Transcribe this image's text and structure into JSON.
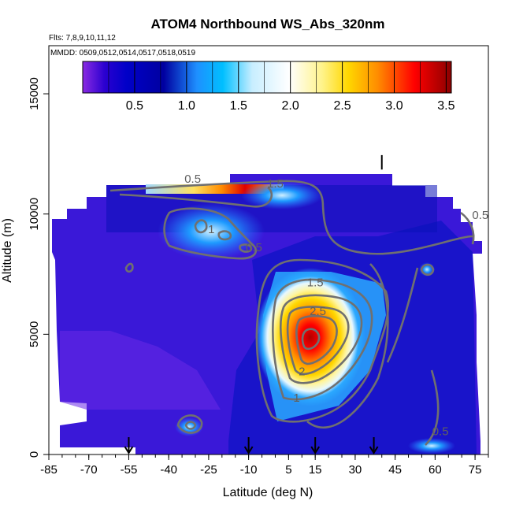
{
  "chart_data": {
    "type": "heatmap",
    "title": "ATOM4 Northbound WS_Abs_320nm",
    "subtitle_line1": "Flts: 7,8,9,10,11,12",
    "subtitle_line2": "MMDD: 0509,0512,0514,0517,0518,0519",
    "xlabel": "Latitude (deg N)",
    "ylabel": "Altitude (m)",
    "xlim": [
      -85,
      80
    ],
    "ylim": [
      0,
      17000
    ],
    "x_ticks": [
      -85,
      -70,
      -55,
      -40,
      -25,
      -10,
      5,
      15,
      30,
      45,
      60,
      75
    ],
    "y_ticks": [
      0,
      5000,
      10000,
      15000
    ],
    "colorbar": {
      "range": [
        0,
        3.55
      ],
      "ticks": [
        0.5,
        1.0,
        1.5,
        2.0,
        2.5,
        3.0,
        3.5
      ],
      "tick_labels": [
        "0.5",
        "1.0",
        "1.5",
        "2.0",
        "2.5",
        "3.0",
        "3.5"
      ],
      "colors": [
        "#8a2be2",
        "#0000cd",
        "#00008b",
        "#1e90ff",
        "#00bfff",
        "#e0f8ff",
        "#ffffff",
        "#fff38a",
        "#ffd700",
        "#ff8c00",
        "#ff0000",
        "#8b0000"
      ]
    },
    "contour_labels": [
      {
        "text": "0.5",
        "x": -31,
        "y": 11300
      },
      {
        "text": "1.5",
        "x": 0,
        "y": 11100
      },
      {
        "text": "1",
        "x": -24,
        "y": 9200
      },
      {
        "text": "0.5",
        "x": -8,
        "y": 8450
      },
      {
        "text": "1.5",
        "x": 15,
        "y": 7000
      },
      {
        "text": "2.5",
        "x": 16,
        "y": 5800
      },
      {
        "text": "2",
        "x": 10,
        "y": 3300
      },
      {
        "text": "1",
        "x": 8,
        "y": 2200
      },
      {
        "text": "0.5",
        "x": 62,
        "y": 800
      },
      {
        "text": "0.5",
        "x": 77,
        "y": 9800
      }
    ],
    "flight_markers_lat": [
      -55,
      -10,
      15,
      37
    ],
    "surface_marker_lat": 40
  }
}
